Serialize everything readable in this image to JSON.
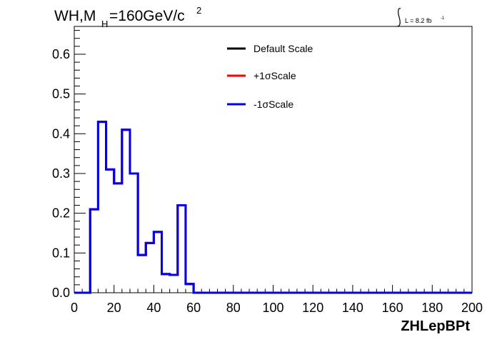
{
  "chart_data": {
    "type": "line",
    "title_main": "WH,M",
    "title_sub": "H",
    "title_rest": "=160GeV/c",
    "title_sup": "2",
    "lumi_text": "L = 8.2 fb",
    "lumi_sup": "-1",
    "xlabel": "ZHLepBPt",
    "ylabel": "",
    "xlim": [
      0,
      200
    ],
    "ylim": [
      0,
      0.67
    ],
    "x_ticks": [
      0,
      20,
      40,
      60,
      80,
      100,
      120,
      140,
      160,
      180,
      200
    ],
    "x_tick_labels": [
      "0",
      "20",
      "40",
      "60",
      "80",
      "100",
      "120",
      "140",
      "160",
      "180",
      "200"
    ],
    "y_ticks": [
      0.0,
      0.1,
      0.2,
      0.3,
      0.4,
      0.5,
      0.6
    ],
    "y_tick_labels": [
      "0.0",
      "0.1",
      "0.2",
      "0.3",
      "0.4",
      "0.5",
      "0.6"
    ],
    "grid": false,
    "legend_position": "top-center",
    "bin_edges": [
      0,
      4,
      8,
      12,
      16,
      20,
      24,
      28,
      32,
      36,
      40,
      44,
      48,
      52,
      56,
      60,
      64,
      68,
      72,
      76,
      80,
      84,
      88,
      92,
      96,
      100,
      104,
      108,
      112,
      116,
      120,
      124,
      128,
      132,
      136,
      140,
      144,
      148,
      152,
      156,
      160,
      164,
      168,
      172,
      176,
      180,
      184,
      188,
      192,
      196,
      200
    ],
    "series": [
      {
        "name": "Default Scale",
        "color": "#000000",
        "values": [
          0,
          0,
          0.21,
          0.43,
          0.31,
          0.275,
          0.41,
          0.3,
          0.095,
          0.125,
          0.153,
          0.047,
          0.045,
          0.22,
          0.022,
          0,
          0,
          0,
          0,
          0,
          0,
          0,
          0,
          0,
          0,
          0,
          0,
          0,
          0,
          0,
          0,
          0,
          0,
          0,
          0,
          0,
          0,
          0,
          0,
          0,
          0,
          0,
          0,
          0,
          0,
          0,
          0,
          0,
          0,
          0
        ]
      },
      {
        "name": "+1σScale",
        "color": "#ff0000",
        "values": [
          0,
          0,
          0.21,
          0.43,
          0.31,
          0.275,
          0.41,
          0.3,
          0.095,
          0.125,
          0.153,
          0.047,
          0.045,
          0.22,
          0.022,
          0,
          0,
          0,
          0,
          0,
          0,
          0,
          0,
          0,
          0,
          0,
          0,
          0,
          0,
          0,
          0,
          0,
          0,
          0,
          0,
          0,
          0,
          0,
          0,
          0,
          0,
          0,
          0,
          0,
          0,
          0,
          0,
          0,
          0,
          0
        ]
      },
      {
        "name": "-1σScale",
        "color": "#0000ee",
        "values": [
          0,
          0,
          0.21,
          0.43,
          0.31,
          0.275,
          0.41,
          0.3,
          0.095,
          0.125,
          0.153,
          0.047,
          0.045,
          0.22,
          0.022,
          0,
          0,
          0,
          0,
          0,
          0,
          0,
          0,
          0,
          0,
          0,
          0,
          0,
          0,
          0,
          0,
          0,
          0,
          0,
          0,
          0,
          0,
          0,
          0,
          0,
          0,
          0,
          0,
          0,
          0,
          0,
          0,
          0,
          0,
          0
        ]
      }
    ]
  }
}
